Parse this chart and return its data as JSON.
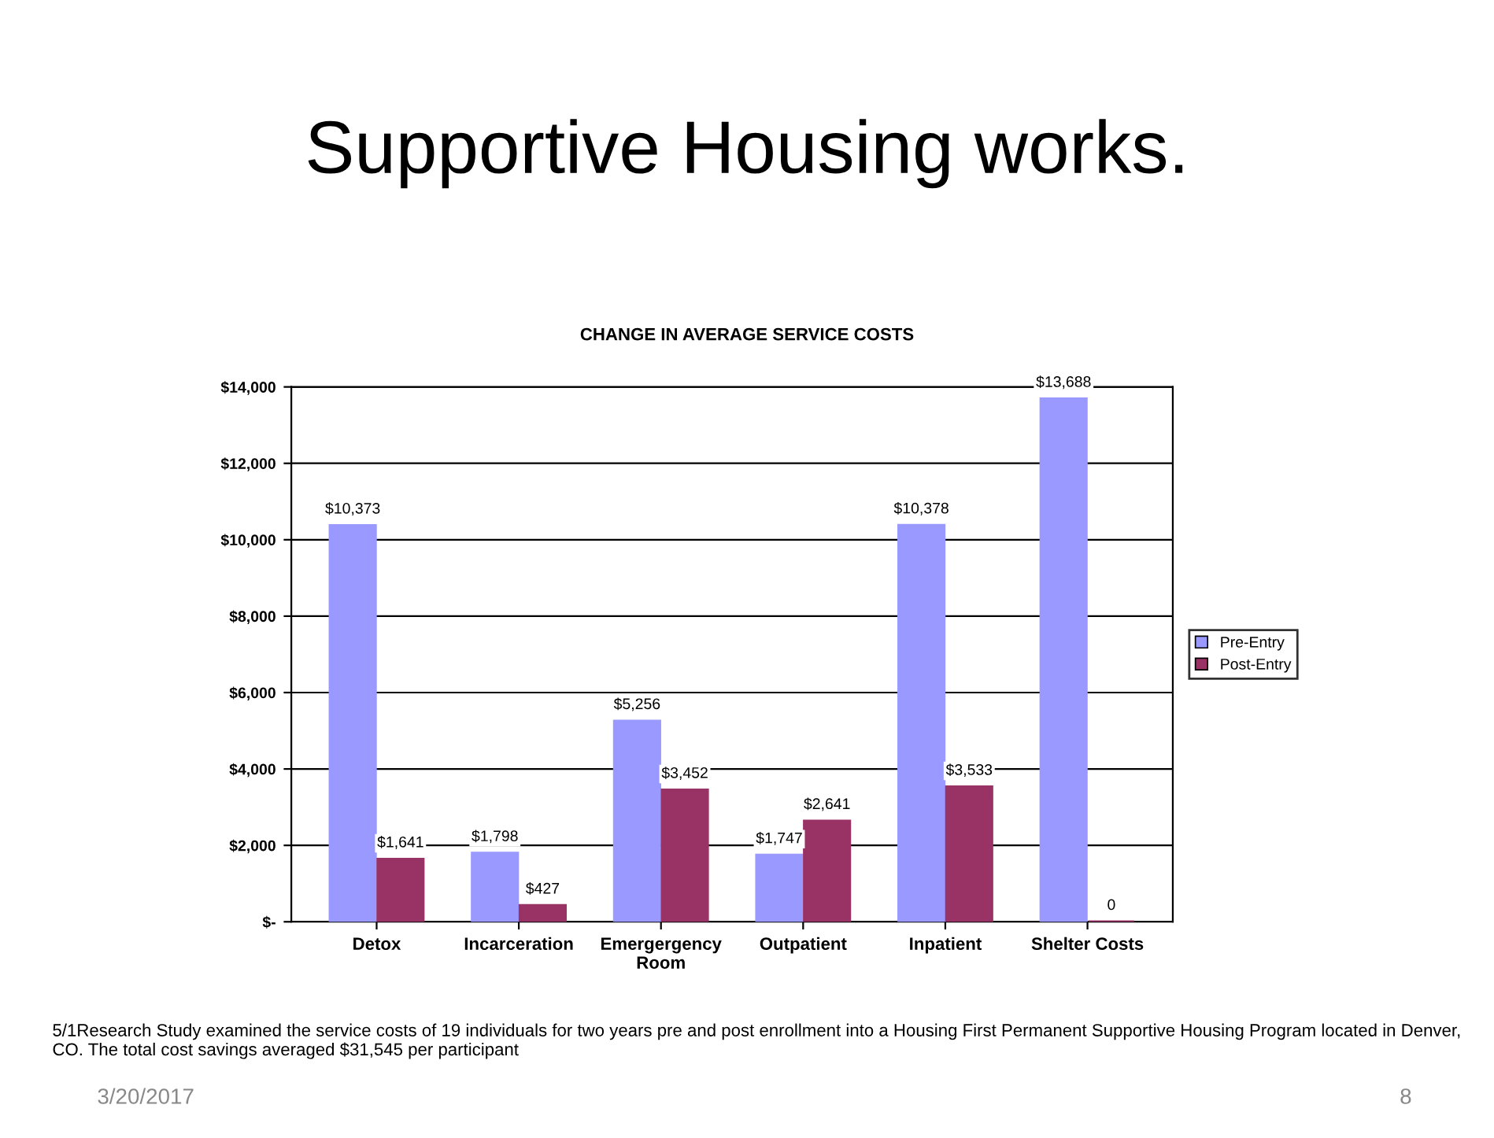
{
  "chart_data": {
    "type": "bar",
    "title": "Supportive Housing works.",
    "subtitle": "CHANGE IN AVERAGE SERVICE COSTS",
    "categories": [
      "Detox",
      "Incarceration",
      "Emergergency\nRoom",
      "Outpatient",
      "Inpatient",
      "Shelter Costs"
    ],
    "series": [
      {
        "name": "Pre-Entry",
        "color": "#9999ff",
        "values": [
          10373,
          1798,
          5256,
          1747,
          10378,
          13688
        ],
        "value_labels": [
          "$10,373",
          "$1,798",
          "$5,256",
          "$1,747",
          "$10,378",
          "$13,688"
        ]
      },
      {
        "name": "Post-Entry",
        "color": "#993366",
        "values": [
          1641,
          427,
          3452,
          2641,
          3533,
          0
        ],
        "value_labels": [
          "$1,641",
          "$427",
          "$3,452",
          "$2,641",
          "$3,533",
          "0"
        ]
      }
    ],
    "ylim": [
      0,
      14000
    ],
    "yticks": [
      {
        "value": 0,
        "label": "$-"
      },
      {
        "value": 2000,
        "label": "$2,000"
      },
      {
        "value": 4000,
        "label": "$4,000"
      },
      {
        "value": 6000,
        "label": "$6,000"
      },
      {
        "value": 8000,
        "label": "$8,000"
      },
      {
        "value": 10000,
        "label": "$10,000"
      },
      {
        "value": 12000,
        "label": "$12,000"
      },
      {
        "value": 14000,
        "label": "$14,000"
      }
    ],
    "grid": "y",
    "legend": "right",
    "annotations": [
      "5/1Research Study examined the service costs of 19 individuals for two years pre and post enrollment into a Housing First Permanent Supportive Housing Program located in Denver, CO. The total cost savings averaged $31,545 per participant",
      "3/20/2017",
      "8"
    ]
  }
}
